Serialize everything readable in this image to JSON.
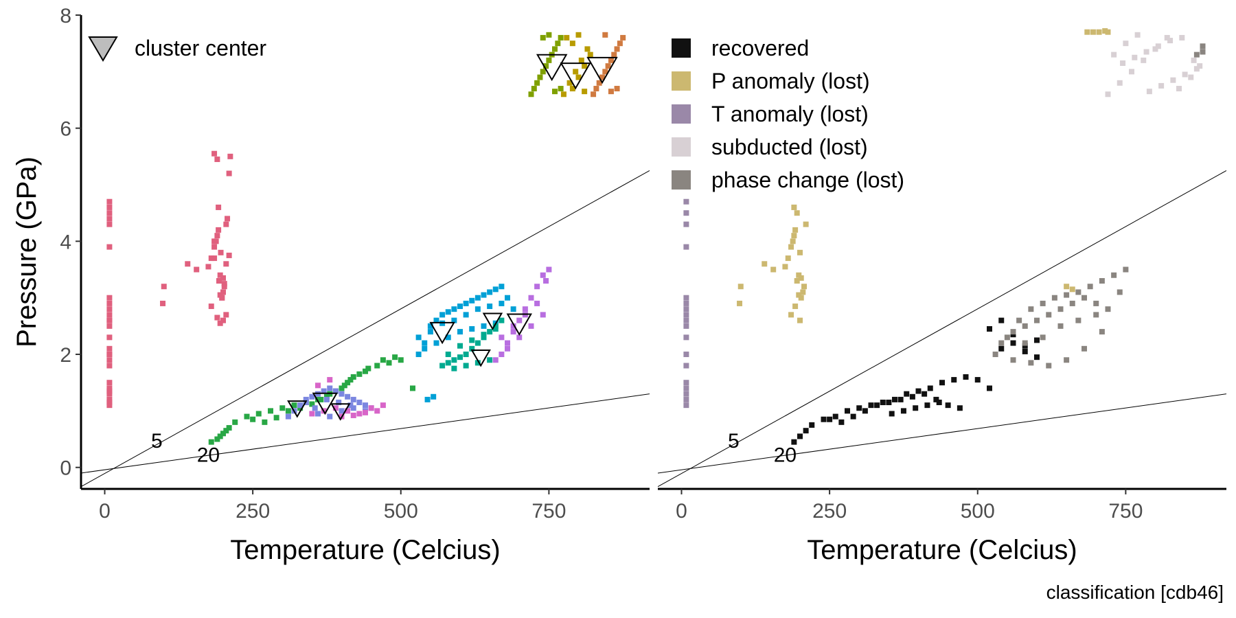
{
  "chart_data": [
    {
      "type": "scatter",
      "panel": "left",
      "xlabel": "Temperature (Celcius)",
      "ylabel": "Pressure (GPa)",
      "xlim": [
        -40,
        920
      ],
      "ylim": [
        -0.38,
        8.0
      ],
      "xticks": [
        0,
        250,
        500,
        750
      ],
      "yticks": [
        0,
        2,
        4,
        6,
        8
      ],
      "grid": false,
      "legend": {
        "placement": "top-left",
        "entries": [
          {
            "label": "cluster center",
            "marker": "down-triangle"
          }
        ]
      },
      "reference_lines": [
        {
          "label": "5",
          "x": [
            -40,
            920
          ],
          "y": [
            -0.34,
            5.25
          ]
        },
        {
          "label": "20",
          "x": [
            -40,
            920
          ],
          "y": [
            -0.1,
            1.3
          ]
        }
      ],
      "contour_labels": [
        {
          "text": "5",
          "x": 88,
          "y": 0.47
        },
        {
          "text": "20",
          "x": 175,
          "y": 0.22
        }
      ],
      "colors": {
        "pink": "#e0607e",
        "green": "#28a745",
        "blue": "#7b86e0",
        "magenta": "#d865c8",
        "cyan": "#00a0d6",
        "teal": "#00aa90",
        "purple": "#b86ee0",
        "olive": "#7fa000",
        "gold": "#b89b00",
        "orange": "#d07a40"
      },
      "series": [
        {
          "color": "pink",
          "x": [
            8,
            8,
            8,
            8,
            8,
            8,
            8,
            8,
            8,
            8,
            8,
            8,
            8,
            8,
            8,
            8,
            8,
            8,
            8,
            8,
            8,
            8,
            8,
            8,
            8,
            8,
            100,
            98,
            140,
            155,
            175,
            180,
            185,
            188,
            190,
            192,
            193,
            195,
            196,
            198,
            200,
            202,
            205,
            207,
            210,
            212,
            190,
            185,
            195,
            200,
            205,
            180,
            195,
            200,
            205,
            210,
            185,
            192,
            198,
            202,
            185,
            190
          ],
          "y": [
            1.1,
            1.2,
            1.3,
            1.4,
            1.5,
            1.8,
            1.9,
            2.0,
            2.1,
            2.3,
            2.5,
            2.6,
            2.7,
            2.8,
            2.9,
            3.0,
            3.9,
            4.3,
            4.4,
            4.5,
            4.6,
            4.7,
            1.15,
            1.35,
            2.0,
            2.6,
            3.2,
            2.9,
            3.6,
            3.5,
            3.55,
            3.7,
            3.9,
            4.0,
            4.1,
            4.2,
            3.3,
            3.4,
            3.8,
            3.0,
            3.1,
            3.2,
            4.3,
            4.4,
            5.2,
            5.5,
            5.45,
            5.55,
            2.55,
            2.6,
            2.7,
            2.85,
            3.05,
            3.35,
            3.6,
            3.75,
            4.0,
            4.6,
            3.0,
            3.25,
            3.7,
            2.65
          ]
        },
        {
          "color": "green",
          "x": [
            180,
            190,
            200,
            210,
            220,
            240,
            260,
            280,
            300,
            320,
            340,
            360,
            380,
            400,
            410,
            420,
            430,
            440,
            460,
            480,
            500,
            520,
            195,
            205,
            250,
            270,
            290,
            310,
            330,
            350,
            365,
            375,
            390,
            405,
            415,
            445,
            470,
            490
          ],
          "y": [
            0.45,
            0.5,
            0.6,
            0.7,
            0.8,
            0.9,
            0.95,
            1.0,
            1.05,
            1.1,
            1.15,
            1.2,
            1.3,
            1.4,
            1.5,
            1.6,
            1.65,
            1.7,
            1.8,
            1.85,
            1.9,
            1.4,
            0.55,
            0.65,
            0.85,
            0.8,
            0.88,
            1.0,
            1.05,
            1.12,
            1.2,
            1.25,
            1.35,
            1.45,
            1.55,
            1.75,
            1.9,
            1.95
          ]
        },
        {
          "color": "blue",
          "x": [
            310,
            320,
            330,
            340,
            350,
            360,
            370,
            380,
            390,
            400,
            410,
            420,
            430,
            440,
            450,
            360,
            380,
            400,
            420,
            440,
            340,
            355,
            375,
            395,
            415
          ],
          "y": [
            0.9,
            1.0,
            1.1,
            1.2,
            1.25,
            1.3,
            1.35,
            1.4,
            1.35,
            1.3,
            1.25,
            1.2,
            1.15,
            1.1,
            1.05,
            0.95,
            0.9,
            1.0,
            1.05,
            1.0,
            1.15,
            1.05,
            1.2,
            1.15,
            1.1
          ]
        },
        {
          "color": "magenta",
          "x": [
            350,
            370,
            390,
            410,
            430,
            450,
            470,
            400,
            420,
            440,
            460,
            380,
            360
          ],
          "y": [
            0.95,
            1.0,
            1.05,
            1.0,
            0.95,
            1.05,
            1.1,
            0.9,
            0.92,
            0.97,
            1.0,
            1.55,
            1.45
          ]
        },
        {
          "color": "cyan",
          "x": [
            530,
            540,
            550,
            560,
            570,
            580,
            590,
            600,
            610,
            620,
            630,
            640,
            650,
            660,
            670,
            680,
            530,
            550,
            570,
            590,
            610,
            630,
            650,
            670,
            690,
            540,
            560,
            580,
            600,
            620,
            640,
            660,
            545,
            555
          ],
          "y": [
            2.0,
            2.2,
            2.4,
            2.6,
            2.7,
            2.75,
            2.8,
            2.85,
            2.9,
            2.95,
            3.0,
            3.05,
            3.1,
            3.15,
            3.2,
            3.0,
            2.3,
            2.5,
            2.55,
            2.6,
            2.7,
            2.8,
            2.85,
            2.9,
            2.8,
            2.1,
            2.2,
            2.3,
            2.4,
            2.45,
            2.5,
            2.55,
            1.2,
            1.25
          ]
        },
        {
          "color": "teal",
          "x": [
            570,
            580,
            590,
            600,
            610,
            620,
            630,
            640,
            650,
            660,
            670,
            580,
            600,
            620,
            640,
            660,
            590,
            610,
            630,
            650
          ],
          "y": [
            1.8,
            1.85,
            1.9,
            1.95,
            2.0,
            2.1,
            2.2,
            2.3,
            2.4,
            2.5,
            2.6,
            2.0,
            2.15,
            2.25,
            2.35,
            2.45,
            1.75,
            1.8,
            1.85,
            1.9
          ]
        },
        {
          "color": "purple",
          "x": [
            660,
            670,
            680,
            690,
            700,
            710,
            720,
            730,
            740,
            750,
            670,
            690,
            710,
            730,
            745,
            680,
            700,
            720,
            740
          ],
          "y": [
            1.9,
            2.0,
            2.2,
            2.4,
            2.6,
            2.8,
            3.0,
            3.2,
            3.4,
            3.5,
            2.3,
            2.5,
            2.7,
            2.9,
            3.3,
            2.1,
            2.3,
            2.5,
            2.7
          ]
        },
        {
          "color": "olive",
          "x": [
            720,
            730,
            740,
            750,
            760,
            770,
            725,
            735,
            745,
            755,
            765,
            740,
            750,
            760,
            770
          ],
          "y": [
            6.6,
            6.8,
            7.0,
            7.2,
            7.4,
            7.6,
            6.7,
            6.9,
            7.1,
            7.3,
            7.5,
            7.6,
            7.65,
            6.65,
            6.7
          ]
        },
        {
          "color": "gold",
          "x": [
            775,
            785,
            795,
            805,
            815,
            780,
            790,
            800,
            810,
            820,
            790,
            800,
            810
          ],
          "y": [
            6.6,
            6.8,
            7.0,
            7.2,
            7.4,
            7.6,
            6.7,
            6.9,
            7.1,
            7.3,
            7.5,
            7.65,
            6.65
          ]
        },
        {
          "color": "orange",
          "x": [
            825,
            835,
            845,
            855,
            865,
            875,
            830,
            840,
            850,
            860,
            870,
            845,
            855,
            865
          ],
          "y": [
            6.6,
            6.8,
            7.0,
            7.2,
            7.4,
            7.6,
            6.7,
            6.9,
            7.1,
            7.3,
            7.5,
            7.65,
            6.65,
            6.7
          ]
        }
      ],
      "cluster_centers": [
        {
          "x": 755,
          "y": 7.1,
          "size": "large"
        },
        {
          "x": 795,
          "y": 6.95,
          "size": "large"
        },
        {
          "x": 840,
          "y": 7.05,
          "size": "large"
        },
        {
          "x": 570,
          "y": 2.4,
          "size": "medium"
        },
        {
          "x": 655,
          "y": 2.6,
          "size": "small"
        },
        {
          "x": 700,
          "y": 2.55,
          "size": "medium"
        },
        {
          "x": 635,
          "y": 1.95,
          "size": "small"
        },
        {
          "x": 325,
          "y": 1.05,
          "size": "small"
        },
        {
          "x": 372,
          "y": 1.15,
          "size": "medium"
        },
        {
          "x": 398,
          "y": 1.0,
          "size": "small"
        }
      ]
    },
    {
      "type": "scatter",
      "panel": "right",
      "xlabel": "Temperature (Celcius)",
      "xlim": [
        -40,
        920
      ],
      "ylim": [
        -0.38,
        8.0
      ],
      "xticks": [
        0,
        250,
        500,
        750
      ],
      "grid": false,
      "legend": {
        "placement": "top-left",
        "entries": [
          {
            "label": "recovered",
            "color": "#111111"
          },
          {
            "label": "P anomaly (lost)",
            "color": "#ccb870"
          },
          {
            "label": "T anomaly (lost)",
            "color": "#9a88a8"
          },
          {
            "label": "subducted (lost)",
            "color": "#d8d0d4"
          },
          {
            "label": "phase change (lost)",
            "color": "#8a8580"
          }
        ]
      },
      "reference_lines": [
        {
          "label": "5",
          "x": [
            -40,
            920
          ],
          "y": [
            -0.34,
            5.25
          ]
        },
        {
          "label": "20",
          "x": [
            -40,
            920
          ],
          "y": [
            -0.1,
            1.3
          ]
        }
      ],
      "contour_labels": [
        {
          "text": "5",
          "x": 88,
          "y": 0.47
        },
        {
          "text": "20",
          "x": 175,
          "y": 0.22
        }
      ],
      "series": [
        {
          "name": "recovered",
          "color": "#111111",
          "x": [
            190,
            200,
            210,
            220,
            240,
            260,
            280,
            300,
            320,
            340,
            360,
            380,
            400,
            420,
            440,
            460,
            480,
            500,
            520,
            540,
            560,
            580,
            600,
            520,
            540,
            560,
            580,
            600,
            250,
            270,
            290,
            310,
            330,
            350,
            370,
            390,
            410,
            430,
            450,
            470,
            355,
            375,
            395,
            415,
            435
          ],
          "y": [
            0.45,
            0.55,
            0.65,
            0.75,
            0.85,
            0.9,
            1.0,
            1.05,
            1.1,
            1.15,
            1.2,
            1.3,
            1.35,
            1.4,
            1.5,
            1.55,
            1.6,
            1.55,
            1.4,
            2.1,
            2.2,
            2.15,
            2.25,
            2.45,
            2.6,
            2.35,
            2.05,
            1.95,
            0.85,
            0.8,
            0.9,
            1.0,
            1.1,
            1.15,
            1.2,
            1.25,
            1.3,
            1.2,
            1.1,
            1.05,
            0.95,
            1.0,
            1.05,
            1.1,
            1.15
          ]
        },
        {
          "name": "P anomaly (lost)",
          "color": "#ccb870",
          "x": [
            100,
            98,
            140,
            155,
            175,
            180,
            185,
            188,
            190,
            192,
            195,
            198,
            200,
            202,
            205,
            207,
            210,
            190,
            195,
            200,
            185,
            192,
            198,
            202,
            685,
            695,
            705,
            715,
            720,
            660,
            650
          ],
          "y": [
            3.2,
            2.9,
            3.6,
            3.5,
            3.55,
            3.7,
            3.9,
            4.0,
            4.1,
            4.2,
            3.3,
            3.4,
            3.8,
            3.0,
            3.1,
            3.2,
            4.3,
            4.6,
            4.5,
            2.6,
            2.7,
            2.85,
            3.05,
            3.35,
            7.7,
            7.7,
            7.7,
            7.72,
            7.7,
            3.15,
            3.2
          ]
        },
        {
          "name": "T anomaly (lost)",
          "color": "#9a88a8",
          "x": [
            8,
            8,
            8,
            8,
            8,
            8,
            8,
            8,
            8,
            8,
            8,
            8,
            8,
            8,
            8,
            8,
            8,
            8
          ],
          "y": [
            1.1,
            1.3,
            1.5,
            1.8,
            2.0,
            2.3,
            2.5,
            2.7,
            2.9,
            3.0,
            3.9,
            4.3,
            4.5,
            4.7,
            1.2,
            1.4,
            2.6,
            2.8
          ]
        },
        {
          "name": "subducted (lost)",
          "color": "#d8d0d4",
          "x": [
            720,
            740,
            760,
            780,
            800,
            820,
            840,
            860,
            875,
            730,
            750,
            770,
            790,
            810,
            830,
            850,
            870,
            745,
            765,
            785,
            805,
            825,
            845,
            865
          ],
          "y": [
            6.6,
            6.8,
            7.0,
            7.2,
            7.4,
            7.6,
            6.7,
            6.9,
            7.1,
            7.3,
            7.5,
            7.65,
            6.65,
            6.75,
            6.85,
            6.95,
            7.05,
            7.15,
            7.25,
            7.35,
            7.45,
            7.55,
            7.6,
            7.2
          ]
        },
        {
          "name": "phase change (lost)",
          "color": "#8a8580",
          "x": [
            530,
            550,
            570,
            590,
            610,
            630,
            650,
            670,
            690,
            710,
            730,
            750,
            540,
            560,
            580,
            600,
            620,
            640,
            660,
            680,
            700,
            720,
            740,
            560,
            590,
            620,
            650,
            680,
            710,
            580,
            610,
            640,
            670,
            700,
            870,
            880,
            880
          ],
          "y": [
            2.0,
            2.3,
            2.6,
            2.8,
            2.9,
            3.0,
            3.05,
            3.1,
            3.2,
            3.3,
            3.4,
            3.5,
            2.2,
            2.4,
            2.5,
            2.6,
            2.7,
            2.8,
            2.9,
            3.0,
            2.9,
            2.8,
            3.1,
            1.9,
            1.85,
            1.8,
            1.9,
            2.1,
            2.4,
            2.2,
            2.3,
            2.5,
            2.6,
            2.7,
            7.3,
            7.45,
            7.35
          ]
        }
      ]
    }
  ],
  "caption": "classification [cdb46]"
}
